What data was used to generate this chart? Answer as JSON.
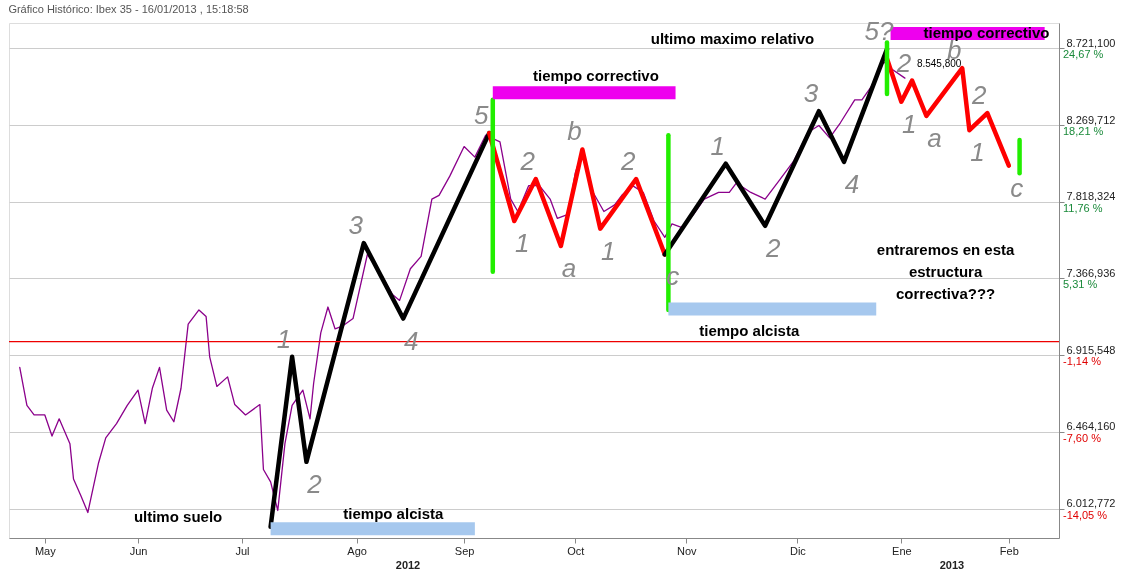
{
  "chart_data": {
    "type": "line",
    "title": "Gráfico Histórico: Ibex 35 - 16/01/2013 , 15:18:58",
    "xlim": [
      "2012-05-11",
      "2013-02-28"
    ],
    "xticks": [
      {
        "value": "2012-05-21",
        "label": "May"
      },
      {
        "value": "2012-06-16",
        "label": "Jun"
      },
      {
        "value": "2012-07-15",
        "label": "Jul"
      },
      {
        "value": "2012-08-16",
        "label": "Ago"
      },
      {
        "value": "2012-09-15",
        "label": "Sep"
      },
      {
        "value": "2012-10-16",
        "label": "Oct"
      },
      {
        "value": "2012-11-16",
        "label": "Nov"
      },
      {
        "value": "2012-12-17",
        "label": "Dic"
      },
      {
        "value": "2013-01-15",
        "label": "Ene"
      },
      {
        "value": "2013-02-14",
        "label": "Feb"
      }
    ],
    "ylim": [
      5840,
      8870
    ],
    "yticks": [
      {
        "value": 6012.772,
        "label": "6.012,772"
      },
      {
        "value": 6464.16,
        "label": "6.464,160"
      },
      {
        "value": 6915.548,
        "label": "6.915,548"
      },
      {
        "value": 7366.936,
        "label": "7.366,936"
      },
      {
        "value": 7818.324,
        "label": "7.818,324"
      },
      {
        "value": 8269.712,
        "label": "8.269,712"
      },
      {
        "value": 8721.1,
        "label": "8.721,100"
      }
    ],
    "y2lim": [
      -16.52,
      26.8
    ],
    "y2ticks": [
      {
        "value": -14.05,
        "label": "-14,05 %"
      },
      {
        "value": -7.6,
        "label": "-7,60 %"
      },
      {
        "value": -1.14,
        "label": "-1,14 %"
      },
      {
        "value": 5.31,
        "label": "5,31 %"
      },
      {
        "value": 11.76,
        "label": "11,76 %"
      },
      {
        "value": 18.21,
        "label": "18,21 %"
      },
      {
        "value": 24.67,
        "label": "24,67 %"
      }
    ],
    "grid": "y",
    "line_style": "solid",
    "ref_lines": [
      {
        "axis": "y",
        "value": 6995,
        "color": "#ee0000"
      }
    ],
    "series": [
      {
        "color": "#8b008b",
        "x": [
          "2012-05-14",
          "2012-05-16",
          "2012-05-18",
          "2012-05-21",
          "2012-05-23",
          "2012-05-25",
          "2012-05-28",
          "2012-05-29",
          "2012-05-31",
          "2012-06-02",
          "2012-06-05",
          "2012-06-07",
          "2012-06-10",
          "2012-06-13",
          "2012-06-16",
          "2012-06-18",
          "2012-06-20",
          "2012-06-22",
          "2012-06-24",
          "2012-06-26",
          "2012-06-28",
          "2012-06-30",
          "2012-07-03",
          "2012-07-05",
          "2012-07-06",
          "2012-07-08",
          "2012-07-11",
          "2012-07-13",
          "2012-07-16",
          "2012-07-20",
          "2012-07-21",
          "2012-07-23",
          "2012-07-25",
          "2012-07-27",
          "2012-07-29",
          "2012-08-01",
          "2012-08-03",
          "2012-08-04",
          "2012-08-06",
          "2012-08-08",
          "2012-08-10",
          "2012-08-12",
          "2012-08-15",
          "2012-08-19",
          "2012-08-23",
          "2012-08-26",
          "2012-08-28",
          "2012-08-31",
          "2012-09-03",
          "2012-09-06",
          "2012-09-08",
          "2012-09-11",
          "2012-09-15",
          "2012-09-18",
          "2012-09-21",
          "2012-09-25",
          "2012-09-28",
          "2012-09-30",
          "2012-10-03",
          "2012-10-06",
          "2012-10-09",
          "2012-10-11",
          "2012-10-14",
          "2012-10-16",
          "2012-10-18",
          "2012-10-21",
          "2012-10-24",
          "2012-10-27",
          "2012-10-29",
          "2012-11-01",
          "2012-11-04",
          "2012-11-07",
          "2012-11-10",
          "2012-11-12",
          "2012-11-15",
          "2012-11-18",
          "2012-11-21",
          "2012-11-25",
          "2012-11-28",
          "2012-11-30",
          "2012-12-04",
          "2012-12-08",
          "2012-12-12",
          "2012-12-16",
          "2012-12-20",
          "2012-12-23",
          "2012-12-26",
          "2012-12-29",
          "2013-01-02",
          "2013-01-04",
          "2013-01-07",
          "2013-01-10",
          "2013-01-12",
          "2013-01-16"
        ],
        "values": [
          6844,
          6620,
          6564,
          6564,
          6440,
          6541,
          6395,
          6187,
          6092,
          5990,
          6283,
          6429,
          6513,
          6620,
          6710,
          6513,
          6721,
          6844,
          6592,
          6524,
          6721,
          7098,
          7182,
          7143,
          6906,
          6732,
          6788,
          6625,
          6564,
          6625,
          6243,
          6170,
          6002,
          6395,
          6620,
          6710,
          6541,
          6749,
          7047,
          7199,
          7070,
          7086,
          7131,
          7508,
          7384,
          7272,
          7238,
          7424,
          7497,
          7834,
          7856,
          7969,
          8143,
          8081,
          8210,
          8171,
          7834,
          7761,
          7913,
          7913,
          7834,
          7721,
          7744,
          7986,
          8115,
          7873,
          7761,
          7800,
          7856,
          7913,
          7873,
          7705,
          7609,
          7688,
          7665,
          7744,
          7834,
          7873,
          7873,
          7929,
          7873,
          7834,
          7946,
          8059,
          8227,
          8267,
          8194,
          8283,
          8418,
          8418,
          8508,
          8643,
          8604,
          8545.8
        ],
        "value_labels": [
          null,
          null,
          null,
          null,
          null,
          null,
          null,
          null,
          null,
          null,
          null,
          null,
          null,
          null,
          null,
          null,
          null,
          null,
          null,
          null,
          null,
          null,
          null,
          null,
          null,
          null,
          null,
          null,
          null,
          null,
          null,
          null,
          null,
          null,
          null,
          null,
          null,
          null,
          null,
          null,
          null,
          null,
          null,
          null,
          null,
          null,
          null,
          null,
          null,
          null,
          null,
          null,
          null,
          null,
          null,
          null,
          null,
          null,
          null,
          null,
          null,
          null,
          null,
          null,
          null,
          null,
          null,
          null,
          null,
          null,
          null,
          null,
          null,
          null,
          null,
          null,
          null,
          null,
          null,
          null,
          null,
          null,
          null,
          null,
          null,
          null,
          null,
          null,
          null,
          null,
          null,
          null,
          null,
          "8.545,800"
        ]
      },
      {
        "type": "line",
        "color": "#000000",
        "x": [
          "2012-07-23",
          "2012-07-29",
          "2012-08-02",
          "2012-08-18",
          "2012-08-29",
          "2012-09-22"
        ],
        "values": [
          5906,
          6906,
          6288,
          7575,
          7131,
          8222
        ]
      },
      {
        "type": "line",
        "color": "#ff0000",
        "x": [
          "2012-09-22",
          "2012-09-29",
          "2012-10-05",
          "2012-10-12",
          "2012-10-18",
          "2012-10-23",
          "2012-11-02",
          "2012-11-10"
        ],
        "values": [
          8222,
          7705,
          7952,
          7558,
          8126,
          7660,
          7952,
          7508
        ]
      },
      {
        "type": "line",
        "color": "#000000",
        "x": [
          "2012-11-10",
          "2012-11-27",
          "2012-12-08",
          "2012-12-23",
          "2012-12-30",
          "2013-01-11"
        ],
        "values": [
          7508,
          8042,
          7677,
          8351,
          8053,
          8716
        ]
      },
      {
        "type": "line",
        "color": "#ff0000",
        "x": [
          "2013-01-11",
          "2013-01-15",
          "2013-01-18",
          "2013-01-22",
          "2013-02-01",
          "2013-02-03",
          "2013-02-08",
          "2013-02-14"
        ],
        "values": [
          8660,
          8407,
          8531,
          8323,
          8604,
          8239,
          8340,
          8031
        ]
      },
      {
        "type": "line",
        "color": "#22ee00",
        "x": [
          "2012-09-23",
          "2012-09-23"
        ],
        "values": [
          8418,
          7407
        ]
      },
      {
        "type": "line",
        "color": "#22ee00",
        "x": [
          "2012-11-11",
          "2012-11-11"
        ],
        "values": [
          8210,
          7182
        ]
      },
      {
        "type": "line",
        "color": "#22ee00",
        "x": [
          "2013-01-11",
          "2013-01-11"
        ],
        "values": [
          8756,
          8452
        ]
      },
      {
        "type": "line",
        "color": "#22ee00",
        "x": [
          "2013-02-17",
          "2013-02-17"
        ],
        "values": [
          8182,
          7986
        ]
      },
      {
        "type": "line",
        "color": "#ee00ee",
        "x": [
          "2012-09-23",
          "2012-11-13"
        ],
        "values": [
          8460,
          8460
        ]
      },
      {
        "type": "line",
        "color": "#ee00ee",
        "x": [
          "2013-01-12",
          "2013-02-24"
        ],
        "values": [
          8808,
          8808
        ]
      },
      {
        "type": "line",
        "color": "#a6c8ee",
        "x": [
          "2012-07-23",
          "2012-09-18"
        ],
        "values": [
          5895,
          5895
        ]
      },
      {
        "type": "line",
        "color": "#a6c8ee",
        "x": [
          "2012-11-11",
          "2013-01-08"
        ],
        "values": [
          7188,
          7188
        ]
      }
    ],
    "annotations": [
      "ultimo suelo",
      "tiempo alcista",
      "tiempo correctivo",
      "tiempo alcista",
      "ultimo maximo relativo",
      "tiempo correctivo",
      "entraremos en esta\nestructura\ncorrectiva???",
      "2012",
      "2013",
      {
        "text": "1",
        "x": "2012-07-29",
        "y": 6906
      },
      {
        "text": "2",
        "x": "2012-08-02",
        "y": 6288
      },
      {
        "text": "3",
        "x": "2012-08-18",
        "y": 7575
      },
      {
        "text": "4",
        "x": "2012-08-29",
        "y": 7131
      },
      {
        "text": "5",
        "x": "2012-09-22",
        "y": 8222
      },
      {
        "text": "1",
        "x": "2012-09-29",
        "y": 7705
      },
      {
        "text": "2",
        "x": "2012-10-05",
        "y": 7952
      },
      {
        "text": "a",
        "x": "2012-10-12",
        "y": 7558
      },
      {
        "text": "b",
        "x": "2012-10-18",
        "y": 8126
      },
      {
        "text": "1",
        "x": "2012-10-23",
        "y": 7660
      },
      {
        "text": "2",
        "x": "2012-11-02",
        "y": 7952
      },
      {
        "text": "c",
        "x": "2012-11-10",
        "y": 7508
      },
      {
        "text": "1",
        "x": "2012-11-27",
        "y": 8042
      },
      {
        "text": "2",
        "x": "2012-12-08",
        "y": 7677
      },
      {
        "text": "3",
        "x": "2012-12-23",
        "y": 8351
      },
      {
        "text": "4",
        "x": "2012-12-30",
        "y": 8053
      },
      {
        "text": "5?",
        "x": "2013-01-11",
        "y": 8716
      },
      {
        "text": "1",
        "x": "2013-01-15",
        "y": 8407
      },
      {
        "text": "2",
        "x": "2013-01-18",
        "y": 8531
      },
      {
        "text": "a",
        "x": "2013-01-22",
        "y": 8323
      },
      {
        "text": "b",
        "x": "2013-02-01",
        "y": 8604
      },
      {
        "text": "1",
        "x": "2013-02-03",
        "y": 8239
      },
      {
        "text": "2",
        "x": "2013-02-08",
        "y": 8340
      },
      {
        "text": "c",
        "x": "2013-02-14",
        "y": 8031
      }
    ]
  }
}
